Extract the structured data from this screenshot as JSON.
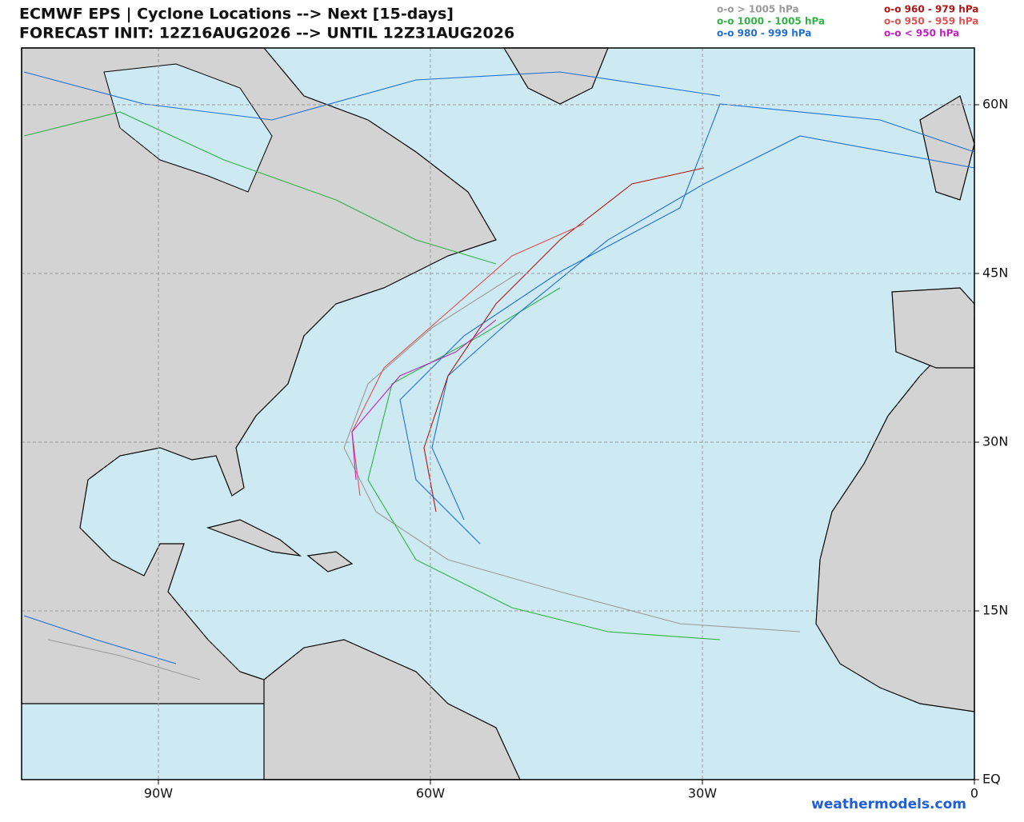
{
  "header": {
    "title_line1": "ECMWF EPS | Cyclone Locations --> Next [15-days]",
    "title_line2": "FORECAST INIT: 12Z16AUG2026 --> UNTIL 12Z31AUG2026"
  },
  "legend": {
    "entries": [
      {
        "label": "o-o > 1005 hPa",
        "color": "#9a9a9a"
      },
      {
        "label": "o-o 1000 - 1005 hPa",
        "color": "#2fb344"
      },
      {
        "label": "o-o 980 - 999 hPa",
        "color": "#1f6fd6"
      },
      {
        "label": "o-o 960 - 979 hPa",
        "color": "#b01515"
      },
      {
        "label": "o-o 950 - 959 hPa",
        "color": "#e05050"
      },
      {
        "label": "o-o < 950 hPa",
        "color": "#c020c0"
      }
    ]
  },
  "map": {
    "lon_ticks": [
      {
        "value": -90,
        "label": "90W"
      },
      {
        "value": -60,
        "label": "60W"
      },
      {
        "value": -30,
        "label": "30W"
      },
      0
    ],
    "lat_ticks": [
      {
        "value": 0,
        "label": "EQ"
      },
      {
        "value": 15,
        "label": "15N"
      },
      {
        "value": 30,
        "label": "30N"
      },
      {
        "value": 45,
        "label": "45N"
      },
      {
        "value": 60,
        "label": "60N"
      }
    ]
  },
  "footer": {
    "credit": "weathermodels.com"
  }
}
